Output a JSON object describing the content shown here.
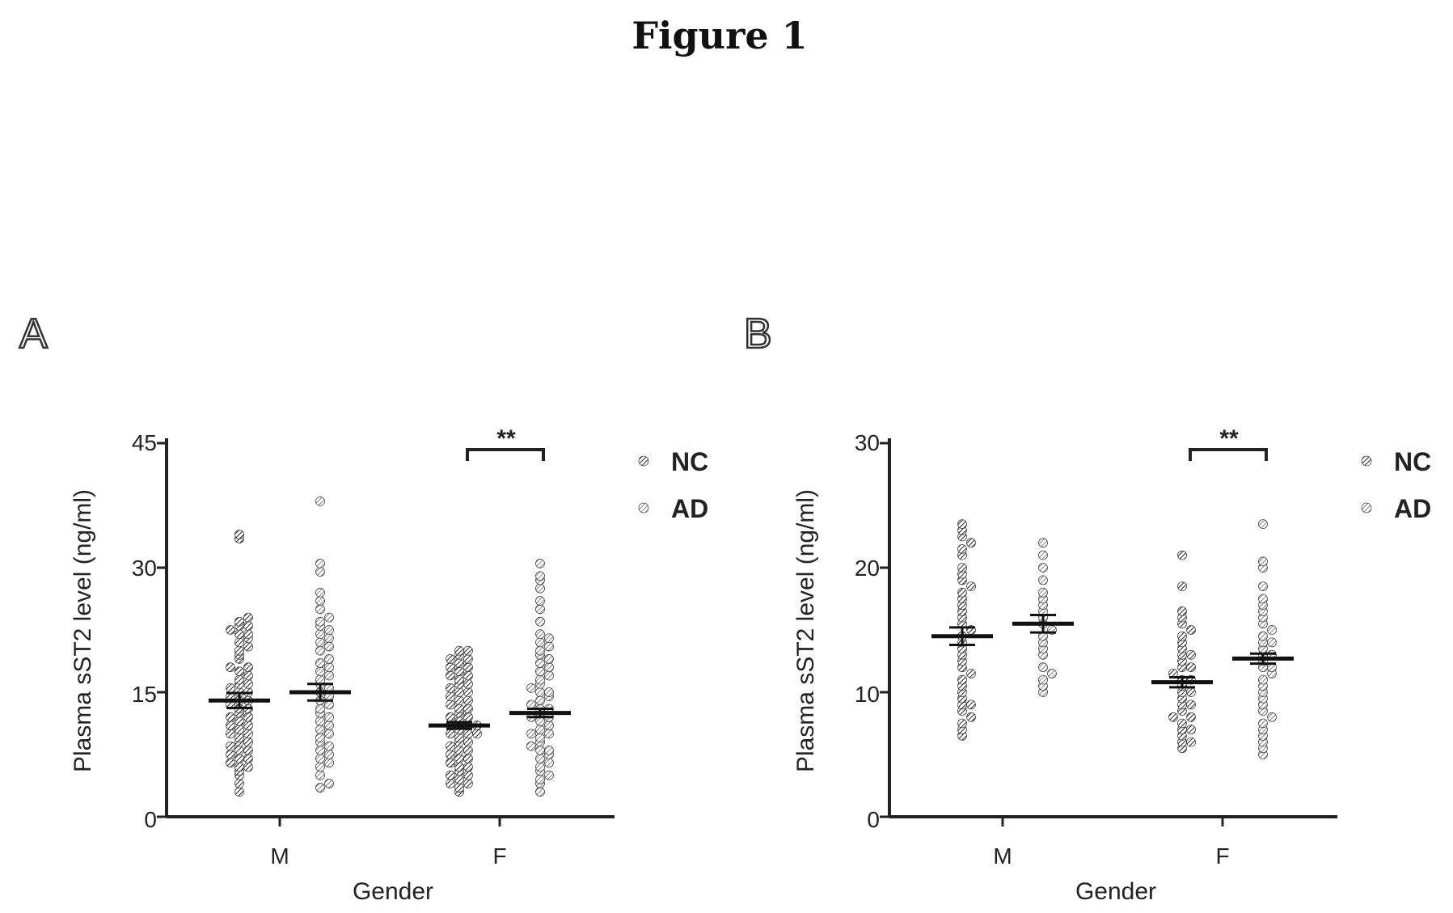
{
  "figure": {
    "title": "Figure 1"
  },
  "chart_data": [
    {
      "panel": "A",
      "type": "scatter",
      "ylabel": "Plasma sST2 level (ng/ml)",
      "xlabel": "Gender",
      "ylim": [
        0,
        45
      ],
      "yticks": [
        "0",
        "15",
        "30",
        "45"
      ],
      "categories": [
        "M",
        "F"
      ],
      "legend": [
        "NC",
        "AD"
      ],
      "legend_position": "top-right",
      "significance": {
        "category": "F",
        "text": "**"
      },
      "groups": [
        {
          "category": "M",
          "series": "NC",
          "mean": 14.0,
          "sem": 0.9,
          "values": [
            3,
            4,
            5,
            5.5,
            6,
            6,
            6.5,
            7,
            7,
            7.5,
            8,
            8,
            8.5,
            9,
            9,
            9.5,
            10,
            10,
            10.5,
            11,
            11,
            11.5,
            12,
            12,
            12.5,
            13,
            13,
            13.5,
            14,
            14,
            14.5,
            15,
            15,
            15.5,
            16,
            16,
            16.5,
            17,
            17.5,
            18,
            18,
            19,
            19.5,
            20,
            20.5,
            21,
            21.5,
            22,
            22,
            22.5,
            23,
            23,
            23.5,
            24,
            33.5,
            34
          ]
        },
        {
          "category": "M",
          "series": "AD",
          "mean": 15.0,
          "sem": 1.0,
          "values": [
            3.5,
            4,
            5,
            6,
            6.5,
            7,
            7.5,
            8,
            8.5,
            9,
            9.5,
            10,
            10.5,
            11,
            11.5,
            12,
            12.5,
            13,
            13.5,
            14,
            14.5,
            15,
            15.5,
            16,
            16.5,
            17,
            17.5,
            18,
            18.5,
            19,
            20,
            20.5,
            21,
            21.5,
            22,
            22.5,
            23,
            23.5,
            24,
            25,
            26,
            27,
            29.5,
            30.5,
            38
          ]
        },
        {
          "category": "F",
          "series": "NC",
          "mean": 11.0,
          "sem": 0.4,
          "values": [
            3,
            3.5,
            4,
            4,
            4.5,
            5,
            5,
            5.5,
            6,
            6,
            6.5,
            7,
            7,
            7.5,
            8,
            8,
            8.5,
            9,
            9,
            9.5,
            10,
            10,
            10,
            10.5,
            11,
            11,
            11,
            11.5,
            12,
            12,
            12.5,
            13,
            13,
            13.5,
            14,
            14,
            14.5,
            15,
            15,
            15.5,
            16,
            16,
            16.5,
            17,
            17,
            17.5,
            18,
            18,
            18.5,
            19,
            19,
            19.5,
            20,
            20
          ]
        },
        {
          "category": "F",
          "series": "AD",
          "mean": 12.5,
          "sem": 0.5,
          "values": [
            3,
            4,
            4.5,
            5,
            5.5,
            6,
            6.5,
            7,
            7.5,
            8,
            8,
            8.5,
            9,
            9.5,
            10,
            10,
            10.5,
            11,
            11.5,
            12,
            12,
            12.5,
            13,
            13,
            13.5,
            14,
            14.5,
            15,
            15,
            15.5,
            16,
            16.5,
            17,
            17.5,
            18,
            18.5,
            19,
            19.5,
            20,
            20.5,
            21,
            21.5,
            22,
            23.5,
            25,
            26,
            27.5,
            28.5,
            29,
            30.5
          ]
        }
      ]
    },
    {
      "panel": "B",
      "type": "scatter",
      "ylabel": "Plasma sST2 level (ng/ml)",
      "xlabel": "Gender",
      "ylim": [
        0,
        30
      ],
      "yticks": [
        "0",
        "10",
        "20",
        "30"
      ],
      "categories": [
        "M",
        "F"
      ],
      "legend": [
        "NC",
        "AD"
      ],
      "legend_position": "top-right",
      "significance": {
        "category": "F",
        "text": "**"
      },
      "groups": [
        {
          "category": "M",
          "series": "NC",
          "mean": 14.5,
          "sem": 0.7,
          "values": [
            6.5,
            7,
            7.5,
            8,
            8.5,
            9,
            9,
            9.5,
            10,
            10.5,
            11,
            11.5,
            12,
            12.5,
            13,
            13.5,
            14,
            14.5,
            15,
            15.5,
            16,
            16.5,
            17,
            17.5,
            18,
            18.5,
            19,
            19.5,
            20,
            21,
            21.5,
            22,
            22.5,
            23,
            23.5
          ]
        },
        {
          "category": "M",
          "series": "AD",
          "mean": 15.5,
          "sem": 0.7,
          "values": [
            10,
            10.5,
            11,
            11.5,
            12,
            13,
            13.5,
            14,
            14.5,
            15,
            15.5,
            16,
            16.5,
            17,
            17.5,
            18,
            19,
            20,
            21,
            22
          ]
        },
        {
          "category": "F",
          "series": "NC",
          "mean": 10.8,
          "sem": 0.4,
          "values": [
            5.5,
            6,
            6,
            6.5,
            7,
            7,
            7.5,
            8,
            8,
            8.5,
            9,
            9,
            9.5,
            10,
            10,
            10.5,
            11,
            11,
            11.5,
            12,
            12,
            12.5,
            13,
            13,
            13.5,
            14,
            14.5,
            15,
            15.5,
            16,
            16.5,
            18.5,
            21
          ]
        },
        {
          "category": "F",
          "series": "AD",
          "mean": 12.7,
          "sem": 0.4,
          "values": [
            5,
            5.5,
            6,
            6.5,
            7,
            7.5,
            8,
            8.5,
            9,
            9.5,
            10,
            10.5,
            11,
            11.5,
            12,
            12,
            12.5,
            13,
            13,
            13.5,
            14,
            14,
            14.5,
            15,
            15.5,
            16,
            16.5,
            17,
            17.5,
            18.5,
            20,
            20.5,
            23.5
          ]
        }
      ]
    }
  ]
}
